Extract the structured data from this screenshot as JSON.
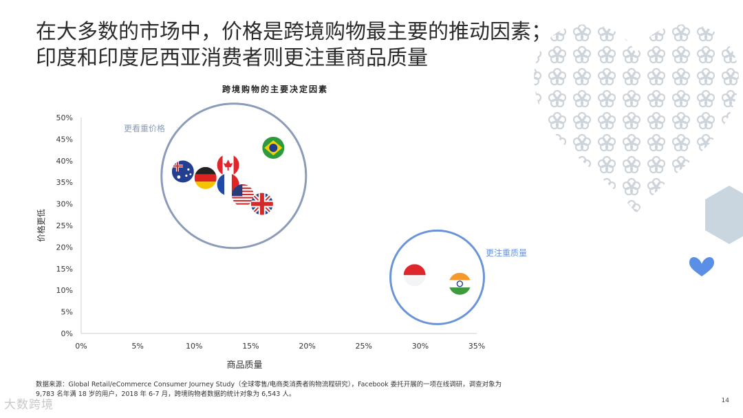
{
  "title_lines": [
    "在大多数的市场中，价格是跨境购物最主要的推动因素；",
    "印度和印度尼西亚消费者则更注重商品质量"
  ],
  "chart_data": {
    "type": "scatter",
    "title": "跨境购物的主要决定因素",
    "xlabel": "商品质量",
    "ylabel": "价格更低",
    "xlim": [
      0,
      35
    ],
    "ylim": [
      0,
      50
    ],
    "x_ticks": [
      "0%",
      "5%",
      "10%",
      "15%",
      "20%",
      "25%",
      "30%",
      "35%"
    ],
    "y_ticks": [
      "0%",
      "5%",
      "10%",
      "15%",
      "20%",
      "25%",
      "30%",
      "35%",
      "40%",
      "45%",
      "50%"
    ],
    "points": [
      {
        "flag": "australia",
        "x": 9,
        "y": 37.5
      },
      {
        "flag": "germany",
        "x": 11,
        "y": 36
      },
      {
        "flag": "canada",
        "x": 13,
        "y": 39
      },
      {
        "flag": "france",
        "x": 13,
        "y": 34.5
      },
      {
        "flag": "usa",
        "x": 14.3,
        "y": 32
      },
      {
        "flag": "uk",
        "x": 16,
        "y": 30
      },
      {
        "flag": "brazil",
        "x": 17,
        "y": 43
      },
      {
        "flag": "indonesia",
        "x": 29.5,
        "y": 13.5
      },
      {
        "flag": "india",
        "x": 33.5,
        "y": 11.5
      }
    ],
    "groups": [
      {
        "label": "更看重价格",
        "cx": 13.5,
        "cy": 36.5,
        "color": "#8a9cba"
      },
      {
        "label": "更注重质量",
        "cx": 31.5,
        "cy": 13,
        "color": "#6a94d8"
      }
    ]
  },
  "footnote_lines": [
    "数据来源：Global Retail/eCommerce Consumer Journey Study（全球零售/电商类消费者购物流程研究），Facebook 委托开展的一项在线调研，调查对象为",
    "9,783 名年满 18 岁的用户，2018 年 6-7 月，跨境购物者数据的统计对象为 6,543 人。"
  ],
  "page_number": "14",
  "watermark": "大数跨境"
}
